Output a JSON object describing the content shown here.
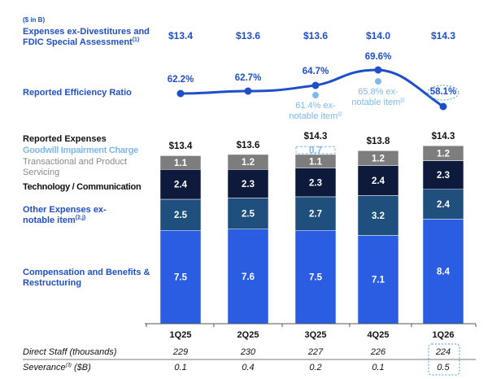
{
  "unit_label": "($ in B)",
  "chart_data": [
    {
      "type": "table",
      "title": "Expenses ex-Divestitures and FDIC Special Assessment",
      "title_footnote": "(1)",
      "categories": [
        "1Q25",
        "2Q25",
        "3Q25",
        "4Q25",
        "1Q26"
      ],
      "values": [
        "$13.4",
        "$13.6",
        "$13.6",
        "$14.0",
        "$14.3"
      ]
    },
    {
      "type": "line",
      "title": "Reported Efficiency Ratio",
      "categories": [
        "1Q25",
        "2Q25",
        "3Q25",
        "4Q25",
        "1Q26"
      ],
      "series": [
        {
          "values": [
            62.2,
            62.7,
            64.7,
            69.6,
            58.1
          ],
          "labels": [
            "62.2%",
            "62.7%",
            "64.7%",
            "69.6%",
            "58.1%"
          ],
          "color": "#1f4fc8"
        }
      ],
      "ex_notable": [
        {
          "category": "3Q25",
          "value": 61.4,
          "label_line1": "61.4% ex-",
          "label_line2": "notable item",
          "footnote": "(j)"
        },
        {
          "category": "4Q25",
          "value": 65.8,
          "label_line1": "65.8% ex-",
          "label_line2": "notable item",
          "footnote": "(j)"
        }
      ],
      "ex_notable_color": "#7fb8ea",
      "highlight": "1Q26"
    },
    {
      "type": "bar",
      "stacked": true,
      "title": "Reported Expenses",
      "categories": [
        "1Q25",
        "2Q25",
        "3Q25",
        "4Q25",
        "1Q26"
      ],
      "totals": [
        "$13.4",
        "$13.6",
        "$14.3",
        "$13.8",
        "$14.3"
      ],
      "series": [
        {
          "name": "Compensation and Benefits & Restructuring",
          "values": [
            7.5,
            7.6,
            7.5,
            7.1,
            8.4
          ],
          "color": "#2b5de3"
        },
        {
          "name": "Other Expenses ex-notable item",
          "footnote": "(2,j)",
          "values": [
            2.5,
            2.5,
            2.7,
            3.2,
            2.4
          ],
          "color": "#1f4f7d"
        },
        {
          "name": "Technology / Communication",
          "values": [
            2.4,
            2.3,
            2.3,
            2.4,
            2.3
          ],
          "color": "#0d1a3b"
        },
        {
          "name": "Transactional and Product Servicing",
          "values": [
            1.1,
            1.2,
            1.1,
            1.2,
            1.2
          ],
          "color": "#7d7d7d"
        },
        {
          "name": "Goodwill Impairment Charge",
          "values": [
            null,
            null,
            0.7,
            null,
            null
          ],
          "color": "#7fb8ea",
          "dashed": true
        }
      ]
    }
  ],
  "table": {
    "rows": [
      {
        "label": "Direct Staff (thousands)",
        "values": [
          "229",
          "230",
          "227",
          "226",
          "224"
        ]
      },
      {
        "label": "Severance",
        "footnote": "(3)",
        "label_suffix": " ($B)",
        "values": [
          "0.1",
          "0.4",
          "0.2",
          "0.1",
          "0.5"
        ]
      }
    ],
    "highlight": "1Q26"
  }
}
